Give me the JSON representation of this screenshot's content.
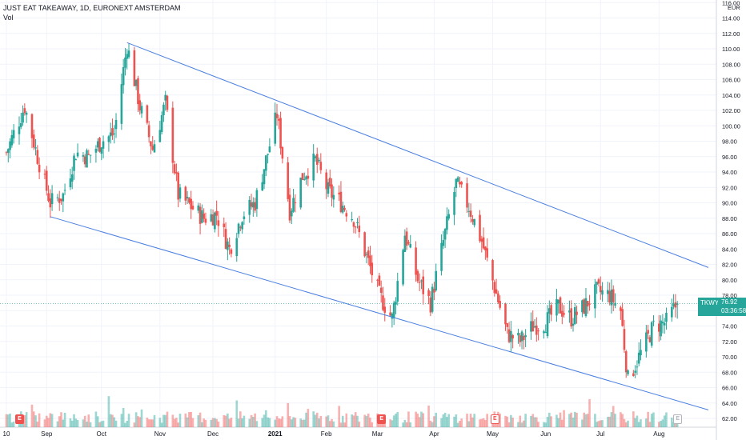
{
  "header": {
    "title": "JUST EAT TAKEAWAY, 1D, EURONEXT AMSTERDAM",
    "vol_label": "Vol"
  },
  "price_label": {
    "symbol": "TKWY",
    "price": "76.92",
    "countdown": "03:36:58"
  },
  "currency": "EUR",
  "colors": {
    "up": "#26a69a",
    "down": "#ef5350",
    "trendline": "#4a7fe0",
    "grid": "#f0f3fa"
  },
  "chart_data": {
    "type": "candlestick",
    "title": "JUST EAT TAKEAWAY, 1D, EURONEXT AMSTERDAM",
    "ylim": [
      61,
      116
    ],
    "y_ticks": [
      "62.00",
      "64.00",
      "66.00",
      "68.00",
      "70.00",
      "72.00",
      "74.00",
      "76.00",
      "78.00",
      "80.00",
      "82.00",
      "84.00",
      "86.00",
      "88.00",
      "90.00",
      "92.00",
      "94.00",
      "96.00",
      "98.00",
      "100.00",
      "102.00",
      "104.00",
      "106.00",
      "108.00",
      "110.00",
      "112.00",
      "114.00",
      "116.00"
    ],
    "x_ticks": [
      {
        "label": "10",
        "bold": false
      },
      {
        "label": "Sep",
        "bold": false
      },
      {
        "label": "Oct",
        "bold": false
      },
      {
        "label": "Nov",
        "bold": false
      },
      {
        "label": "Dec",
        "bold": false
      },
      {
        "label": "2021",
        "bold": true
      },
      {
        "label": "Feb",
        "bold": false
      },
      {
        "label": "Mar",
        "bold": false
      },
      {
        "label": "Apr",
        "bold": false
      },
      {
        "label": "May",
        "bold": false
      },
      {
        "label": "Jun",
        "bold": false
      },
      {
        "label": "Jul",
        "bold": false
      },
      {
        "label": "Aug",
        "bold": false
      }
    ],
    "close_path": [
      {
        "date": "2020-08-10",
        "close": 96.5
      },
      {
        "date": "2020-08-14",
        "close": 99.0
      },
      {
        "date": "2020-08-20",
        "close": 102.5
      },
      {
        "date": "2020-08-27",
        "close": 96.0
      },
      {
        "date": "2020-09-03",
        "close": 90.0
      },
      {
        "date": "2020-09-10",
        "close": 91.0
      },
      {
        "date": "2020-09-17",
        "close": 96.5
      },
      {
        "date": "2020-09-24",
        "close": 96.0
      },
      {
        "date": "2020-10-01",
        "close": 98.0
      },
      {
        "date": "2020-10-08",
        "close": 99.0
      },
      {
        "date": "2020-10-15",
        "close": 110.5
      },
      {
        "date": "2020-10-22",
        "close": 102.5
      },
      {
        "date": "2020-10-29",
        "close": 97.0
      },
      {
        "date": "2020-11-05",
        "close": 103.0
      },
      {
        "date": "2020-11-12",
        "close": 91.0
      },
      {
        "date": "2020-11-19",
        "close": 89.5
      },
      {
        "date": "2020-11-26",
        "close": 88.0
      },
      {
        "date": "2020-12-03",
        "close": 88.5
      },
      {
        "date": "2020-12-10",
        "close": 84.0
      },
      {
        "date": "2020-12-17",
        "close": 88.5
      },
      {
        "date": "2020-12-24",
        "close": 90.0
      },
      {
        "date": "2020-12-31",
        "close": 96.5
      },
      {
        "date": "2021-01-05",
        "close": 101.5
      },
      {
        "date": "2021-01-12",
        "close": 89.0
      },
      {
        "date": "2021-01-19",
        "close": 93.5
      },
      {
        "date": "2021-01-26",
        "close": 95.5
      },
      {
        "date": "2021-02-02",
        "close": 91.5
      },
      {
        "date": "2021-02-09",
        "close": 90.0
      },
      {
        "date": "2021-02-16",
        "close": 88.0
      },
      {
        "date": "2021-02-23",
        "close": 83.0
      },
      {
        "date": "2021-03-02",
        "close": 78.0
      },
      {
        "date": "2021-03-09",
        "close": 75.0
      },
      {
        "date": "2021-03-16",
        "close": 86.0
      },
      {
        "date": "2021-03-23",
        "close": 80.0
      },
      {
        "date": "2021-03-30",
        "close": 77.0
      },
      {
        "date": "2021-04-06",
        "close": 85.0
      },
      {
        "date": "2021-04-13",
        "close": 92.5
      },
      {
        "date": "2021-04-20",
        "close": 89.5
      },
      {
        "date": "2021-04-27",
        "close": 85.0
      },
      {
        "date": "2021-05-04",
        "close": 79.0
      },
      {
        "date": "2021-05-11",
        "close": 73.0
      },
      {
        "date": "2021-05-18",
        "close": 72.0
      },
      {
        "date": "2021-05-25",
        "close": 74.0
      },
      {
        "date": "2021-06-01",
        "close": 74.5
      },
      {
        "date": "2021-06-08",
        "close": 76.5
      },
      {
        "date": "2021-06-15",
        "close": 75.0
      },
      {
        "date": "2021-06-22",
        "close": 76.5
      },
      {
        "date": "2021-06-29",
        "close": 78.5
      },
      {
        "date": "2021-07-06",
        "close": 78.0
      },
      {
        "date": "2021-07-12",
        "close": 76.0
      },
      {
        "date": "2021-07-16",
        "close": 67.0
      },
      {
        "date": "2021-07-23",
        "close": 70.5
      },
      {
        "date": "2021-07-30",
        "close": 74.0
      },
      {
        "date": "2021-08-06",
        "close": 74.5
      },
      {
        "date": "2021-08-12",
        "close": 76.92
      }
    ],
    "trendlines": [
      {
        "name": "upper",
        "from": {
          "date": "2020-10-15",
          "price": 110.8
        },
        "to": {
          "date": "2021-08-29",
          "price": 81.6
        }
      },
      {
        "name": "lower",
        "from": {
          "date": "2020-09-03",
          "price": 88.2
        },
        "to": {
          "date": "2021-08-29",
          "price": 63.1
        }
      }
    ],
    "events": [
      {
        "date": "2020-08-17",
        "type": "earnings",
        "style": "filled"
      },
      {
        "date": "2021-03-03",
        "type": "earnings",
        "style": "filled"
      },
      {
        "date": "2021-05-04",
        "type": "earnings",
        "style": "outline"
      },
      {
        "date": "2021-08-12",
        "type": "earnings",
        "style": "grey"
      }
    ]
  }
}
